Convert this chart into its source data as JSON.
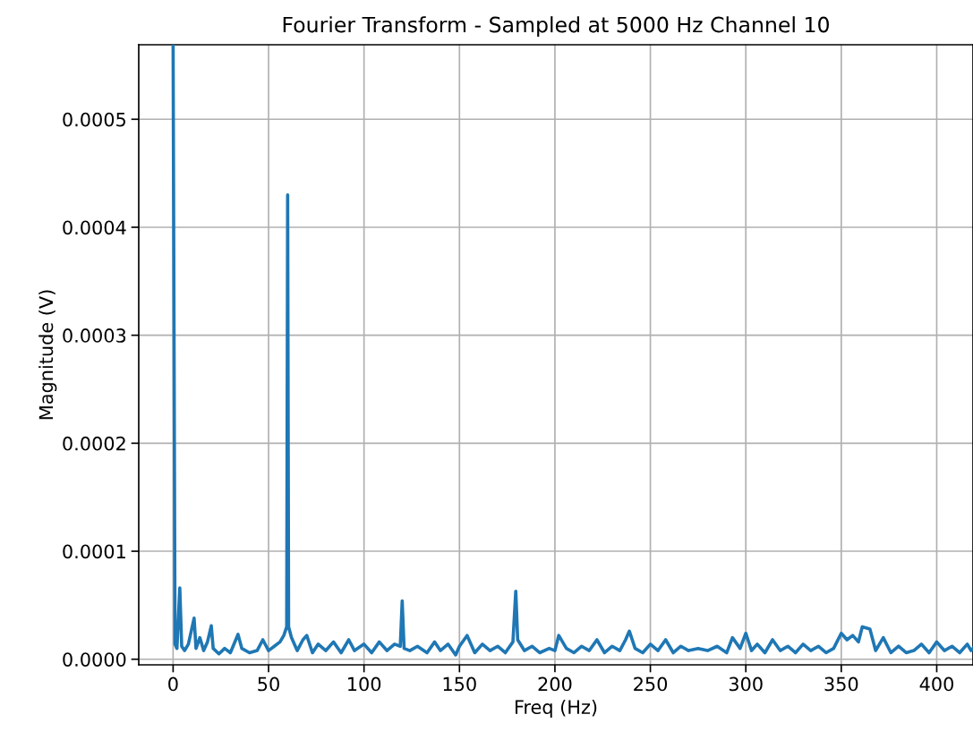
{
  "chart_data": {
    "type": "line",
    "title": "Fourier Transform - Sampled at 5000 Hz Channel 10",
    "xlabel": "Freq (Hz)",
    "ylabel": "Magnitude (V)",
    "xlim": [
      -18,
      419
    ],
    "ylim": [
      -5.2e-06,
      0.000569
    ],
    "xticks": [
      0,
      50,
      100,
      150,
      200,
      250,
      300,
      350,
      400
    ],
    "yticks": [
      {
        "value": 0,
        "label": "0.0000"
      },
      {
        "value": 0.0001,
        "label": "0.0001"
      },
      {
        "value": 0.0002,
        "label": "0.0002"
      },
      {
        "value": 0.0003,
        "label": "0.0003"
      },
      {
        "value": 0.0004,
        "label": "0.0004"
      },
      {
        "value": 0.0005,
        "label": "0.0005"
      }
    ],
    "grid": true,
    "series": [
      {
        "color": "#1f77b4",
        "x": [
          0,
          1,
          2,
          3.5,
          4.5,
          6,
          8,
          11,
          12,
          14,
          16,
          18,
          20,
          21,
          24,
          27,
          30,
          34,
          36,
          40,
          44,
          47,
          50,
          53,
          56,
          58,
          59.5,
          60,
          60.5,
          62,
          65,
          68,
          70,
          73,
          76,
          80,
          84,
          88,
          92,
          95,
          100,
          104,
          108,
          112,
          116,
          119,
          120,
          121,
          124,
          128,
          133,
          137,
          140,
          144,
          148,
          150,
          154,
          158,
          162,
          166,
          170,
          174,
          178,
          179.5,
          180.5,
          184,
          188,
          192,
          197,
          200,
          202,
          206,
          210,
          214,
          218,
          222,
          226,
          230,
          234,
          237,
          239,
          242,
          246,
          250,
          254,
          258,
          262,
          266,
          270,
          275,
          280,
          285,
          290,
          293,
          297,
          300,
          303,
          306,
          310,
          314,
          318,
          322,
          326,
          330,
          334,
          338,
          342,
          346,
          350,
          353,
          356,
          359,
          361,
          365,
          368,
          372,
          376,
          380,
          384,
          388,
          392,
          396,
          400,
          404,
          408,
          412,
          416,
          418,
          419
        ],
        "values": [
          0.000569,
          1.4e-05,
          1e-05,
          6.6e-05,
          1.2e-05,
          8e-06,
          1.4e-05,
          3.8e-05,
          1e-05,
          2e-05,
          8e-06,
          1.6e-05,
          3.1e-05,
          1e-05,
          5e-06,
          1e-05,
          6e-06,
          2.3e-05,
          1e-05,
          6e-06,
          8e-06,
          1.8e-05,
          8e-06,
          1.2e-05,
          1.6e-05,
          2.2e-05,
          3e-05,
          0.00043,
          3e-05,
          2e-05,
          8e-06,
          1.8e-05,
          2.2e-05,
          6e-06,
          1.4e-05,
          8e-06,
          1.6e-05,
          6e-06,
          1.8e-05,
          8e-06,
          1.4e-05,
          6e-06,
          1.6e-05,
          8e-06,
          1.4e-05,
          1.2e-05,
          5.4e-05,
          1e-05,
          8e-06,
          1.2e-05,
          6e-06,
          1.6e-05,
          8e-06,
          1.4e-05,
          4e-06,
          1.2e-05,
          2.2e-05,
          6e-06,
          1.4e-05,
          8e-06,
          1.2e-05,
          6e-06,
          1.6e-05,
          6.3e-05,
          1.8e-05,
          8e-06,
          1.2e-05,
          6e-06,
          1e-05,
          8e-06,
          2.2e-05,
          1e-05,
          6e-06,
          1.2e-05,
          8e-06,
          1.8e-05,
          6e-06,
          1.2e-05,
          8e-06,
          1.8e-05,
          2.6e-05,
          1e-05,
          6e-06,
          1.4e-05,
          8e-06,
          1.8e-05,
          6e-06,
          1.2e-05,
          8e-06,
          1e-05,
          8e-06,
          1.2e-05,
          6e-06,
          2e-05,
          1e-05,
          2.4e-05,
          8e-06,
          1.4e-05,
          6e-06,
          1.8e-05,
          8e-06,
          1.2e-05,
          6e-06,
          1.4e-05,
          8e-06,
          1.2e-05,
          6e-06,
          1e-05,
          2.4e-05,
          1.8e-05,
          2.2e-05,
          1.6e-05,
          3e-05,
          2.8e-05,
          8e-06,
          2e-05,
          6e-06,
          1.2e-05,
          6e-06,
          8e-06,
          1.4e-05,
          6e-06,
          1.6e-05,
          8e-06,
          1.2e-05,
          6e-06,
          1.4e-05,
          8e-06,
          1e-05
        ]
      }
    ]
  }
}
